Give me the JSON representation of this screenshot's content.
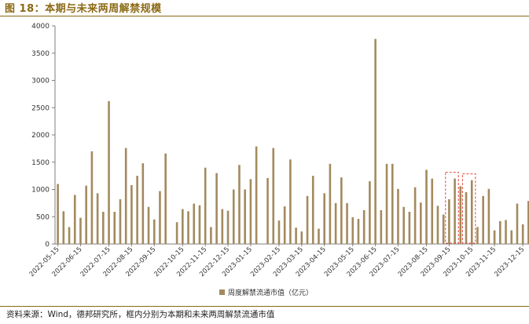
{
  "figure": {
    "title": "图 18：本期与未来两周解禁规模",
    "source": "资料来源：Wind，德邦研究所，框内分别为本期和未来两周解禁流通市值"
  },
  "chart_data": {
    "type": "bar",
    "title": "",
    "xlabel": "",
    "ylabel": "",
    "ylim": [
      0,
      4000
    ],
    "yticks": [
      0,
      500,
      1000,
      1500,
      2000,
      2500,
      3000,
      3500,
      4000
    ],
    "legend": {
      "position": "bottom-center"
    },
    "grid": false,
    "colors": {
      "bar": "#A38A5E",
      "highlight_box": "#E0493C"
    },
    "x_tick_labels": [
      "2022-05-15",
      "2022-06-15",
      "2022-07-15",
      "2022-08-15",
      "2022-09-15",
      "2022-10-15",
      "2022-11-15",
      "2022-12-15",
      "2023-01-15",
      "2023-02-15",
      "2023-03-15",
      "2023-04-15",
      "2023-05-15",
      "2023-06-15",
      "2023-07-15",
      "2023-08-15",
      "2023-09-15",
      "2023-10-15",
      "2023-11-15",
      "2023-12-15"
    ],
    "series": [
      {
        "name": "周度解禁流通市值（亿元）",
        "values": [
          1100,
          600,
          310,
          900,
          480,
          1070,
          1700,
          930,
          590,
          2620,
          590,
          820,
          1760,
          1080,
          1250,
          1480,
          680,
          450,
          970,
          1660,
          0,
          400,
          640,
          600,
          740,
          710,
          1400,
          310,
          1300,
          640,
          610,
          1000,
          1450,
          1000,
          1190,
          1790,
          0,
          1210,
          1760,
          430,
          690,
          1550,
          300,
          230,
          880,
          1250,
          280,
          930,
          1470,
          750,
          1220,
          750,
          490,
          460,
          620,
          1150,
          3760,
          620,
          1470,
          1470,
          1010,
          680,
          590,
          1040,
          760,
          1360,
          1200,
          700,
          540,
          820,
          1200,
          1060,
          950,
          1170,
          310,
          880,
          1010,
          250,
          420,
          440,
          250,
          740,
          360,
          790
        ]
      }
    ],
    "highlight_boxes": [
      {
        "style": "dashed",
        "bars": [
          69,
          70
        ]
      },
      {
        "style": "dashed",
        "bars": [
          72,
          73
        ]
      }
    ]
  }
}
